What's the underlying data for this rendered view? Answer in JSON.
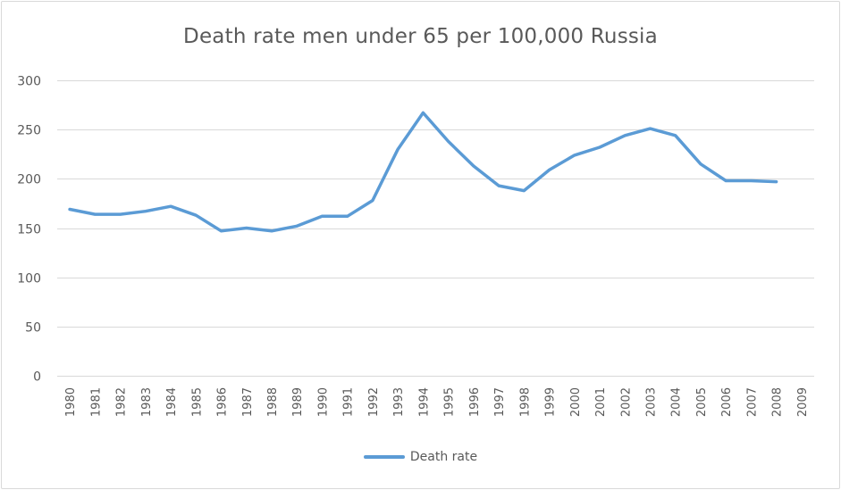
{
  "chart_data": {
    "type": "line",
    "title": "Death rate men under 65 per 100,000 Russia",
    "xlabel": "",
    "ylabel": "",
    "categories": [
      "1980",
      "1981",
      "1982",
      "1983",
      "1984",
      "1985",
      "1986",
      "1987",
      "1988",
      "1989",
      "1990",
      "1991",
      "1992",
      "1993",
      "1994",
      "1995",
      "1996",
      "1997",
      "1998",
      "1999",
      "2000",
      "2001",
      "2002",
      "2003",
      "2004",
      "2005",
      "2006",
      "2007",
      "2008",
      "2009"
    ],
    "yticks": [
      "0",
      "50",
      "100",
      "150",
      "200",
      "250",
      "300"
    ],
    "ylim": [
      0,
      300
    ],
    "grid": true,
    "legend_position": "bottom",
    "series": [
      {
        "name": "Death rate",
        "color": "#5b9bd5",
        "values": [
          169,
          164,
          164,
          167,
          172,
          163,
          147,
          150,
          147,
          152,
          162,
          162,
          178,
          230,
          267,
          238,
          213,
          193,
          188,
          209,
          224,
          232,
          244,
          251,
          244,
          215,
          198,
          198,
          197,
          null
        ]
      }
    ]
  }
}
